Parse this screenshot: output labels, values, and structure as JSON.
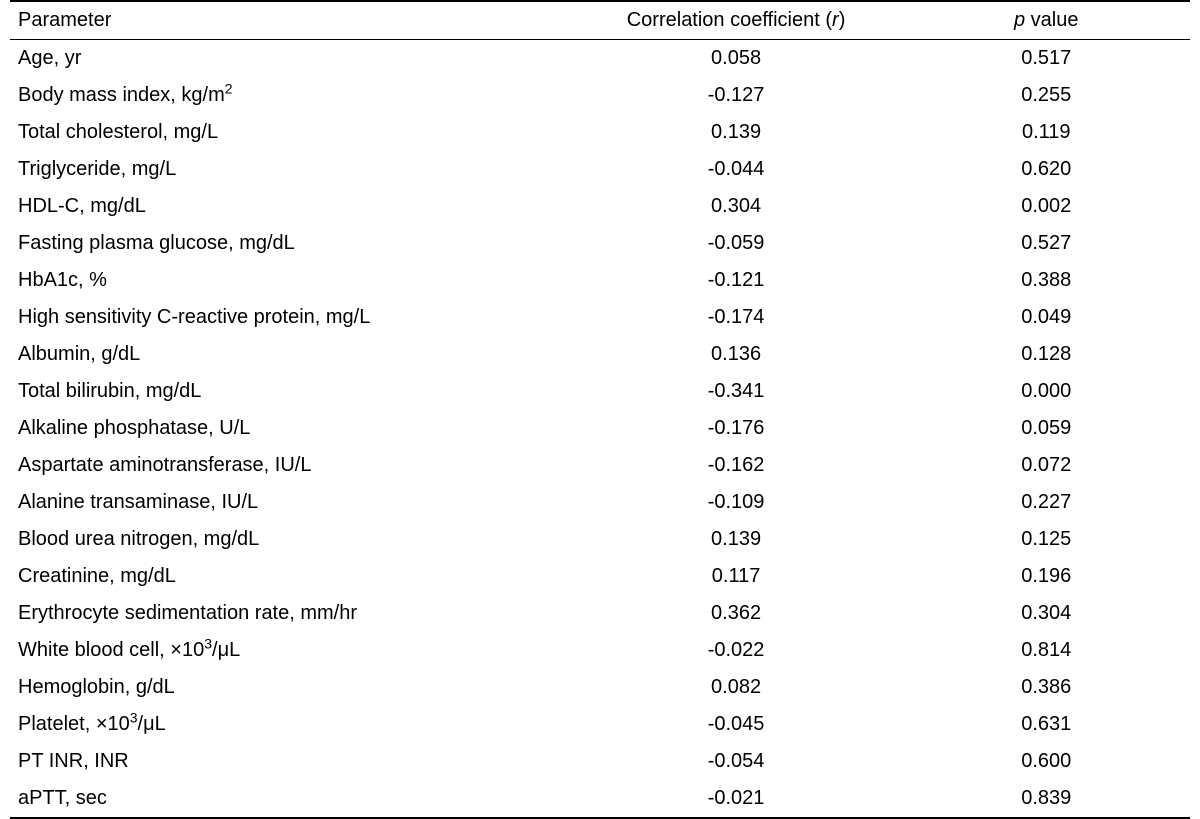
{
  "table": {
    "type": "table",
    "background_color": "#ffffff",
    "text_color": "#000000",
    "border_color": "#000000",
    "font_family": "Arial",
    "font_size_pt": 15,
    "columns": [
      {
        "key": "parameter",
        "label_html": "Parameter",
        "align": "left",
        "width_pct": 48
      },
      {
        "key": "r",
        "label_html": "Correlation coefficient (<span class=\"italic\">r</span>)",
        "align": "center",
        "width_pct": 28
      },
      {
        "key": "p",
        "label_html": "<span class=\"italic\">p</span> value",
        "align": "center",
        "width_pct": 24
      }
    ],
    "rows": [
      {
        "parameter": "Age, yr",
        "r": "0.058",
        "p": "0.517"
      },
      {
        "parameter": "Body mass index, kg/m<sup>2</sup>",
        "r": "-0.127",
        "p": "0.255"
      },
      {
        "parameter": "Total cholesterol, mg/L",
        "r": "0.139",
        "p": "0.119"
      },
      {
        "parameter": "Triglyceride, mg/L",
        "r": "-0.044",
        "p": "0.620"
      },
      {
        "parameter": "HDL-C, mg/dL",
        "r": "0.304",
        "p": "0.002"
      },
      {
        "parameter": "Fasting plasma glucose, mg/dL",
        "r": "-0.059",
        "p": "0.527"
      },
      {
        "parameter": "HbA1c, %",
        "r": "-0.121",
        "p": "0.388"
      },
      {
        "parameter": "High sensitivity C-reactive protein, mg/L",
        "r": "-0.174",
        "p": "0.049"
      },
      {
        "parameter": "Albumin, g/dL",
        "r": "0.136",
        "p": "0.128"
      },
      {
        "parameter": "Total bilirubin, mg/dL",
        "r": "-0.341",
        "p": "0.000"
      },
      {
        "parameter": "Alkaline phosphatase, U/L",
        "r": "-0.176",
        "p": "0.059"
      },
      {
        "parameter": "Aspartate aminotransferase, IU/L",
        "r": "-0.162",
        "p": "0.072"
      },
      {
        "parameter": "Alanine transaminase, IU/L",
        "r": "-0.109",
        "p": "0.227"
      },
      {
        "parameter": "Blood urea nitrogen, mg/dL",
        "r": "0.139",
        "p": "0.125"
      },
      {
        "parameter": "Creatinine, mg/dL",
        "r": "0.117",
        "p": "0.196"
      },
      {
        "parameter": "Erythrocyte sedimentation rate, mm/hr",
        "r": "0.362",
        "p": "0.304"
      },
      {
        "parameter": "White blood cell, ×10<sup>3</sup>/μL",
        "r": "-0.022",
        "p": "0.814"
      },
      {
        "parameter": "Hemoglobin, g/dL",
        "r": "0.082",
        "p": "0.386"
      },
      {
        "parameter": "Platelet, ×10<sup>3</sup>/μL",
        "r": "-0.045",
        "p": "0.631"
      },
      {
        "parameter": "PT INR, INR",
        "r": "-0.054",
        "p": "0.600"
      },
      {
        "parameter": "aPTT, sec",
        "r": "-0.021",
        "p": "0.839"
      }
    ]
  }
}
